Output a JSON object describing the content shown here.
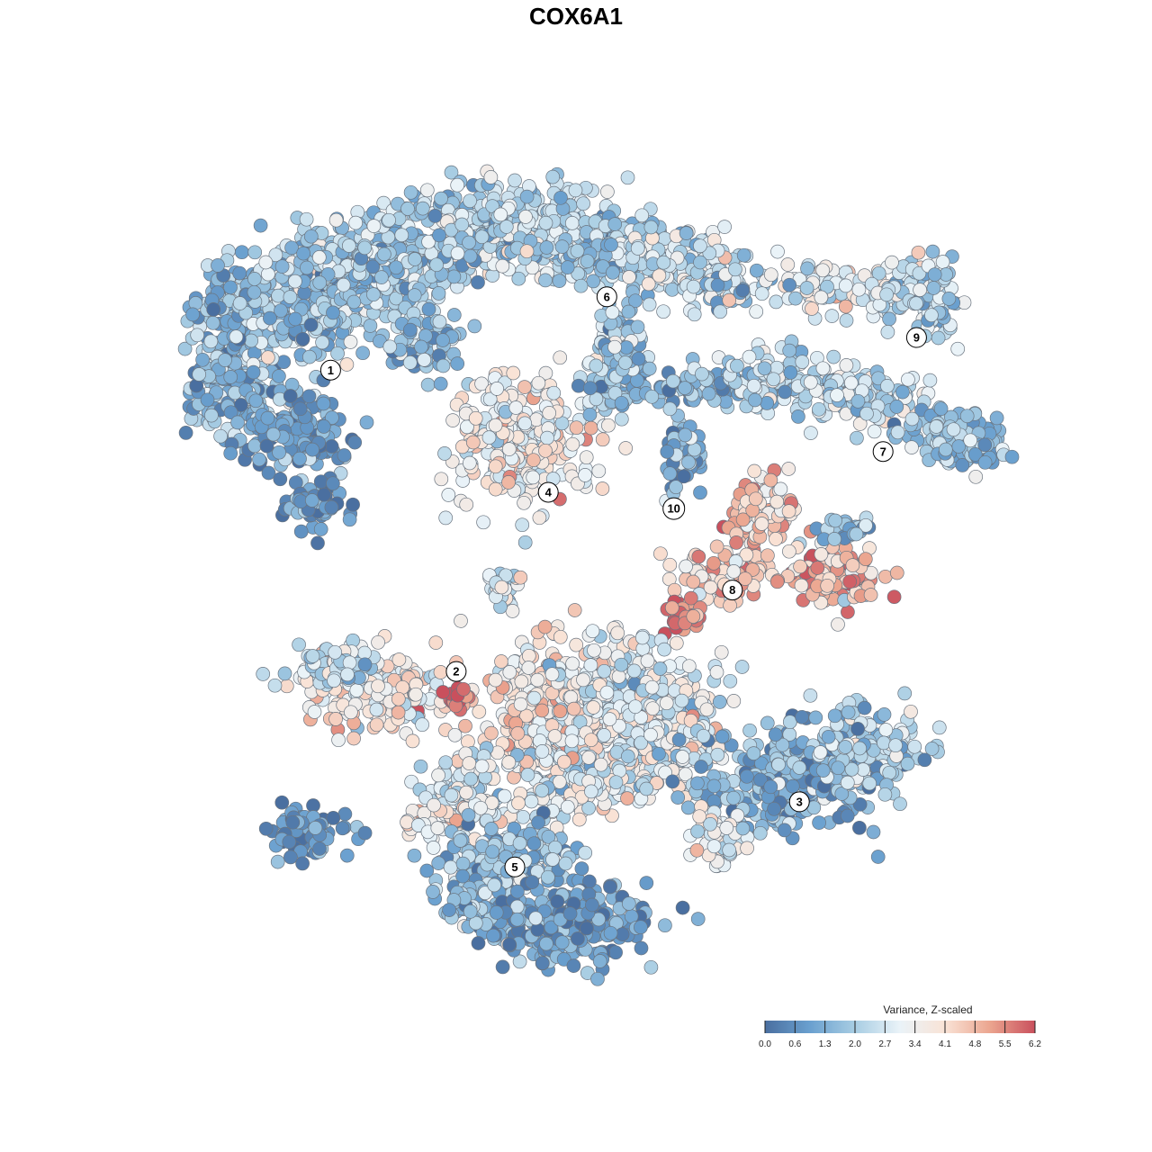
{
  "chart_data": {
    "type": "scatter",
    "title": "COX6A1",
    "xlabel": "",
    "ylabel": "",
    "grid": false,
    "legend": {
      "title": "Variance, Z-scaled",
      "placement": "bottom-right",
      "ticks": [
        "0.0",
        "0.6",
        "1.3",
        "2.0",
        "2.7",
        "3.4",
        "4.1",
        "4.8",
        "5.5",
        "6.2"
      ],
      "range": [
        0,
        6.2
      ],
      "colors": [
        "#4a6fa0",
        "#6aa0cf",
        "#a8cde3",
        "#eaf3f8",
        "#f9e3d6",
        "#eba58f",
        "#c9505d"
      ]
    },
    "clusters": [
      {
        "label": "1",
        "x": 0.18,
        "y": 0.75
      },
      {
        "label": "2",
        "x": 0.33,
        "y": 0.38
      },
      {
        "label": "3",
        "x": 0.74,
        "y": 0.22
      },
      {
        "label": "4",
        "x": 0.44,
        "y": 0.6
      },
      {
        "label": "5",
        "x": 0.4,
        "y": 0.14
      },
      {
        "label": "6",
        "x": 0.51,
        "y": 0.84
      },
      {
        "label": "7",
        "x": 0.84,
        "y": 0.65
      },
      {
        "label": "8",
        "x": 0.66,
        "y": 0.48
      },
      {
        "label": "9",
        "x": 0.88,
        "y": 0.79
      },
      {
        "label": "10",
        "x": 0.59,
        "y": 0.58
      }
    ]
  }
}
